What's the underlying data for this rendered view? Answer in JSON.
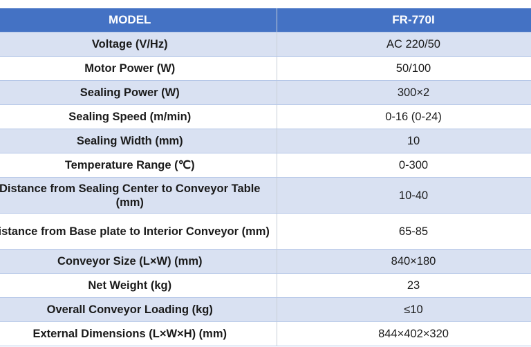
{
  "header": {
    "label": "MODEL",
    "model": "FR-770I"
  },
  "colors": {
    "header": "#4472C4",
    "band": "#D9E1F2",
    "border": "#B4C6E7"
  },
  "rows": [
    {
      "label": "Voltage   (V/Hz)",
      "value": "AC 220/50"
    },
    {
      "label": "Motor Power (W)",
      "value": "50/100"
    },
    {
      "label": "Sealing   Power (W)",
      "value": "300×2"
    },
    {
      "label": "Sealing Speed (m/min)",
      "value": "0-16   (0-24)"
    },
    {
      "label": "Sealing Width (mm)",
      "value": "10"
    },
    {
      "label": "Temperature Range (℃)",
      "value": "0-300"
    },
    {
      "label": "Distance from Sealing Center to Conveyor Table (mm)",
      "value": "10-40"
    },
    {
      "label": "Distance from Base plate to Interior Conveyor (mm)",
      "value": "65-85"
    },
    {
      "label": "Conveyor Size (L×W) (mm)",
      "value": "840×180"
    },
    {
      "label": "Net Weight (kg)",
      "value": "23"
    },
    {
      "label": "Overall Conveyor Loading (kg)",
      "value": "≤10"
    },
    {
      "label": "External Dimensions (L×W×H) (mm)",
      "value": "844×402×320"
    }
  ]
}
